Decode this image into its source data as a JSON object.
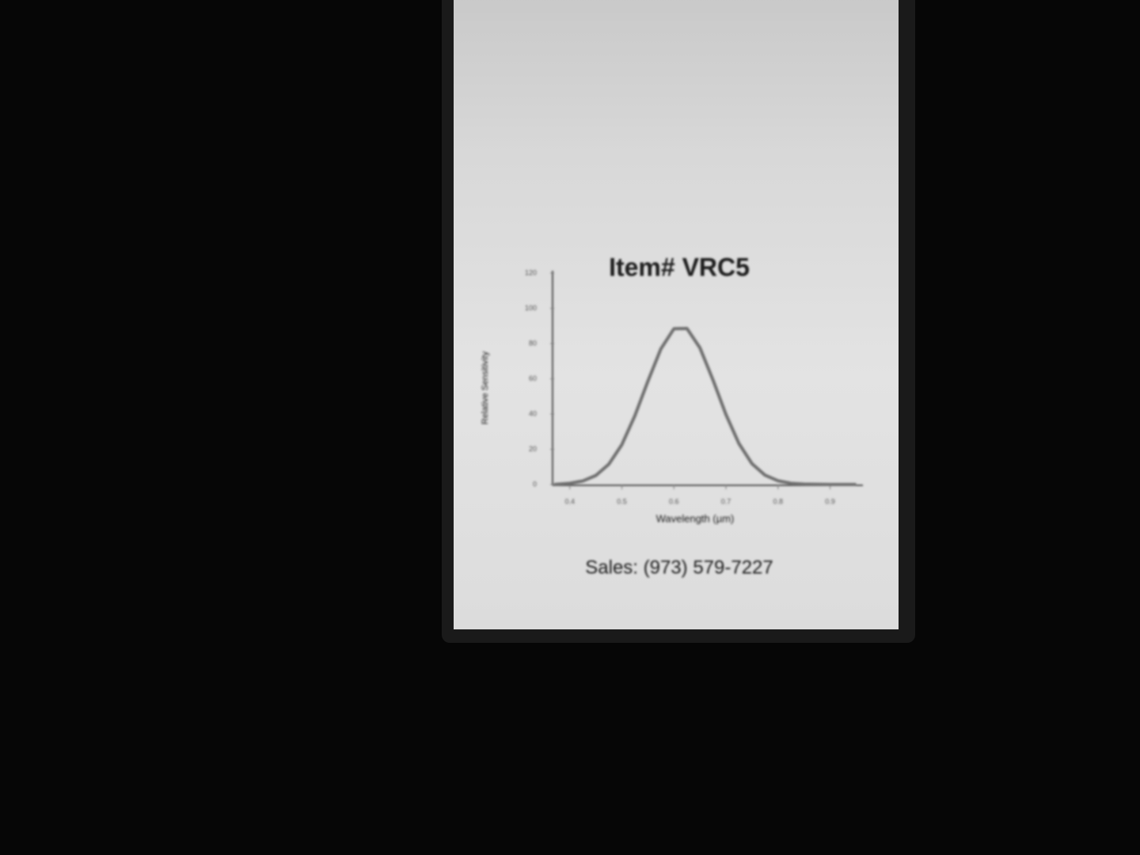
{
  "chart_data": {
    "type": "line",
    "title": "Item# VRC5",
    "xlabel": "Wavelength (µm)",
    "ylabel": "Relative Sensitivity",
    "series": [
      {
        "name": "Relative Sensitivity",
        "color": "#6e6e6e",
        "x": [
          0.37,
          0.4,
          0.425,
          0.45,
          0.475,
          0.5,
          0.525,
          0.55,
          0.575,
          0.6,
          0.625,
          0.65,
          0.675,
          0.7,
          0.725,
          0.75,
          0.775,
          0.8,
          0.825,
          0.85,
          0.9,
          0.95
        ],
        "values": [
          0,
          0.7,
          2.0,
          5.1,
          11.5,
          22.6,
          39.0,
          58.6,
          77.0,
          88.4,
          88.6,
          77.6,
          59.4,
          39.7,
          23.2,
          11.8,
          5.3,
          2.1,
          0.7,
          0.2,
          0,
          0
        ]
      }
    ],
    "xlim": [
      0.37,
      0.96
    ],
    "xticks": [
      0.4,
      0.5,
      0.6,
      0.7,
      0.8,
      0.9
    ],
    "ylim": [
      0,
      120
    ],
    "yticks": [
      0,
      20,
      40,
      60,
      80,
      100,
      120
    ],
    "grid": false
  },
  "footer": "Sales: (973) 579-7227"
}
